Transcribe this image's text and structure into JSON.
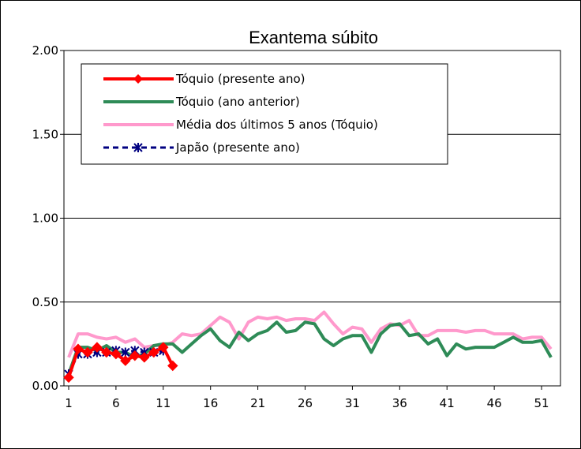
{
  "chart_data": {
    "type": "line",
    "title": "Exantema súbito",
    "xlabel": "",
    "ylabel": "",
    "ylim": [
      0,
      2.0
    ],
    "xlim": [
      1,
      53
    ],
    "y_ticks": [
      "0.00",
      "0.50",
      "1.00",
      "1.50",
      "2.00"
    ],
    "x_ticks": [
      "1",
      "6",
      "11",
      "16",
      "21",
      "26",
      "31",
      "36",
      "41",
      "46",
      "51"
    ],
    "grid": "horizontal",
    "legend_position": "top-left",
    "series": [
      {
        "name": "Tóquio (presente ano)",
        "color": "#ff0000",
        "marker": "diamond",
        "dashed": false,
        "x": [
          1,
          2,
          3,
          4,
          5,
          6,
          7,
          8,
          9,
          10,
          11,
          12
        ],
        "values": [
          0.05,
          0.22,
          0.2,
          0.23,
          0.2,
          0.19,
          0.15,
          0.18,
          0.17,
          0.2,
          0.23,
          0.12
        ]
      },
      {
        "name": "Tóquio (ano anterior)",
        "color": "#2e8b57",
        "marker": "none",
        "dashed": false,
        "x": [
          1,
          2,
          3,
          4,
          5,
          6,
          7,
          8,
          9,
          10,
          11,
          12,
          13,
          14,
          15,
          16,
          17,
          18,
          19,
          20,
          21,
          22,
          23,
          24,
          25,
          26,
          27,
          28,
          29,
          30,
          31,
          32,
          33,
          34,
          35,
          36,
          37,
          38,
          39,
          40,
          41,
          42,
          43,
          44,
          45,
          46,
          47,
          48,
          49,
          50,
          51,
          52
        ],
        "values": [
          0.07,
          0.23,
          0.23,
          0.21,
          0.24,
          0.2,
          0.2,
          0.17,
          0.19,
          0.24,
          0.25,
          0.25,
          0.2,
          0.25,
          0.3,
          0.34,
          0.27,
          0.23,
          0.32,
          0.27,
          0.31,
          0.33,
          0.38,
          0.32,
          0.33,
          0.38,
          0.37,
          0.28,
          0.24,
          0.28,
          0.3,
          0.3,
          0.2,
          0.31,
          0.36,
          0.37,
          0.3,
          0.31,
          0.25,
          0.28,
          0.18,
          0.25,
          0.22,
          0.23,
          0.23,
          0.23,
          0.26,
          0.29,
          0.26,
          0.26,
          0.27,
          0.17
        ]
      },
      {
        "name": "Média dos últimos 5 anos (Tóquio)",
        "color": "#ff99cc",
        "marker": "none",
        "dashed": false,
        "x": [
          1,
          2,
          3,
          4,
          5,
          6,
          7,
          8,
          9,
          10,
          11,
          12,
          13,
          14,
          15,
          16,
          17,
          18,
          19,
          20,
          21,
          22,
          23,
          24,
          25,
          26,
          27,
          28,
          29,
          30,
          31,
          32,
          33,
          34,
          35,
          36,
          37,
          38,
          39,
          40,
          41,
          42,
          43,
          44,
          45,
          46,
          47,
          48,
          49,
          50,
          51,
          52
        ],
        "values": [
          0.17,
          0.31,
          0.31,
          0.29,
          0.28,
          0.29,
          0.26,
          0.28,
          0.23,
          0.24,
          0.24,
          0.26,
          0.31,
          0.3,
          0.31,
          0.36,
          0.41,
          0.38,
          0.28,
          0.38,
          0.41,
          0.4,
          0.41,
          0.39,
          0.4,
          0.4,
          0.39,
          0.44,
          0.37,
          0.31,
          0.35,
          0.34,
          0.26,
          0.34,
          0.37,
          0.36,
          0.39,
          0.3,
          0.3,
          0.33,
          0.33,
          0.33,
          0.32,
          0.33,
          0.33,
          0.31,
          0.31,
          0.31,
          0.28,
          0.29,
          0.29,
          0.22
        ]
      },
      {
        "name": "Japão (presente ano)",
        "color": "#000080",
        "marker": "asterisk",
        "dashed": true,
        "x": [
          1,
          2,
          3,
          4,
          5,
          6,
          7,
          8,
          9,
          10,
          11
        ],
        "values": [
          0.07,
          0.19,
          0.19,
          0.2,
          0.2,
          0.21,
          0.2,
          0.21,
          0.2,
          0.2,
          0.21
        ]
      }
    ]
  }
}
